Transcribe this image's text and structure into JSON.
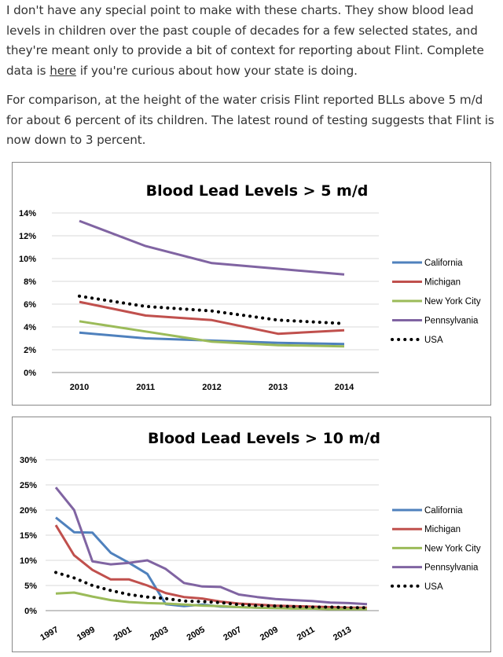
{
  "article": {
    "p1_part1": "I don't have any special point to make with these charts. They show blood lead levels in children over the past couple of decades for a few selected states, and they're meant only to provide a bit of context for reporting about Flint. Complete data is ",
    "p1_link": "here",
    "p1_part2": " if you're curious about how your state is doing.",
    "p2": "For comparison, at the height of the water crisis Flint reported BLLs above 5 m/d for about 6 percent of its children. The latest round of testing suggests that Flint is now down to 3 percent."
  },
  "chart_data": [
    {
      "type": "line",
      "title": "Blood Lead Levels > 5 m/d",
      "xlabel": "",
      "ylabel": "",
      "x": [
        "2010",
        "2011",
        "2012",
        "2013",
        "2014"
      ],
      "ylim": [
        0,
        14
      ],
      "yticks": [
        "0%",
        "2%",
        "4%",
        "6%",
        "8%",
        "10%",
        "12%",
        "14%"
      ],
      "grid": true,
      "legend_position": "right",
      "series": [
        {
          "name": "California",
          "color": "#4f81bd",
          "dash": false,
          "values": [
            3.5,
            3.0,
            2.8,
            2.6,
            2.5
          ]
        },
        {
          "name": "Michigan",
          "color": "#c0504d",
          "dash": false,
          "values": [
            6.2,
            5.0,
            4.6,
            3.4,
            3.7
          ]
        },
        {
          "name": "New York City",
          "color": "#9bbb59",
          "dash": false,
          "values": [
            4.5,
            3.6,
            2.7,
            2.4,
            2.3
          ]
        },
        {
          "name": "Pennsylvania",
          "color": "#8064a2",
          "dash": false,
          "values": [
            13.3,
            11.1,
            9.6,
            9.1,
            8.6
          ]
        },
        {
          "name": "USA",
          "color": "#000000",
          "dash": true,
          "values": [
            6.7,
            5.8,
            5.4,
            4.6,
            4.3
          ]
        }
      ]
    },
    {
      "type": "line",
      "title": "Blood Lead Levels > 10 m/d",
      "xlabel": "",
      "ylabel": "",
      "x": [
        "1997",
        "1998",
        "1999",
        "2000",
        "2001",
        "2002",
        "2003",
        "2004",
        "2005",
        "2006",
        "2007",
        "2008",
        "2009",
        "2010",
        "2011",
        "2012",
        "2013",
        "2014"
      ],
      "xtick_labels": [
        "1997",
        "1999",
        "2001",
        "2003",
        "2005",
        "2007",
        "2009",
        "2011",
        "2013"
      ],
      "ylim": [
        0,
        30
      ],
      "yticks": [
        "0%",
        "5%",
        "10%",
        "15%",
        "20%",
        "25%",
        "30%"
      ],
      "grid": true,
      "legend_position": "right",
      "series": [
        {
          "name": "California",
          "color": "#4f81bd",
          "dash": false,
          "values": [
            18.5,
            15.6,
            15.5,
            11.5,
            9.5,
            7.3,
            1.3,
            0.9,
            1.2,
            0.8,
            0.7,
            0.6,
            0.5,
            0.5,
            0.5,
            0.5,
            0.4,
            0.4
          ]
        },
        {
          "name": "Michigan",
          "color": "#c0504d",
          "dash": false,
          "values": [
            17.0,
            11.0,
            8.1,
            6.2,
            6.2,
            5.0,
            3.5,
            2.7,
            2.4,
            1.8,
            1.4,
            1.2,
            1.0,
            0.9,
            0.8,
            0.7,
            0.6,
            0.6
          ]
        },
        {
          "name": "New York City",
          "color": "#9bbb59",
          "dash": false,
          "values": [
            3.4,
            3.6,
            2.8,
            2.1,
            1.7,
            1.5,
            1.4,
            1.2,
            1.0,
            0.9,
            0.7,
            0.6,
            0.5,
            0.4,
            0.4,
            0.3,
            0.3,
            0.3
          ]
        },
        {
          "name": "Pennsylvania",
          "color": "#8064a2",
          "dash": false,
          "values": [
            24.5,
            20.0,
            9.8,
            9.2,
            9.5,
            10.0,
            8.3,
            5.5,
            4.8,
            4.7,
            3.2,
            2.7,
            2.3,
            2.1,
            1.9,
            1.6,
            1.5,
            1.3
          ]
        },
        {
          "name": "USA",
          "color": "#000000",
          "dash": true,
          "values": [
            7.6,
            6.5,
            5.0,
            4.0,
            3.2,
            2.7,
            2.4,
            1.9,
            1.8,
            1.6,
            1.2,
            1.0,
            0.9,
            0.8,
            0.7,
            0.7,
            0.6,
            0.6
          ]
        }
      ]
    }
  ]
}
